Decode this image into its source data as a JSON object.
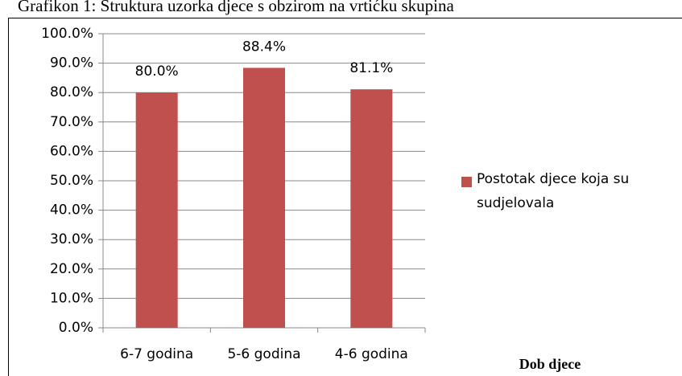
{
  "chart_data": {
    "type": "bar",
    "title": "Grafikon 1: Struktura uzorka djece s obzirom na vrtićku skupina",
    "x_label": "Dob djece",
    "categories": [
      "6-7 godina",
      "5-6 godina",
      "4-6 godina"
    ],
    "series": [
      {
        "name": "Postotak djece koja su sudjelovala",
        "color": "#c0504d",
        "values": [
          80.0,
          88.4,
          81.1
        ],
        "value_labels": [
          "80.0%",
          "88.4%",
          "81.1%"
        ]
      }
    ],
    "ylim": [
      0,
      100
    ],
    "yticks": [
      {
        "value": 0,
        "label": "0.0%"
      },
      {
        "value": 10,
        "label": "10.0%"
      },
      {
        "value": 20,
        "label": "20.0%"
      },
      {
        "value": 30,
        "label": "30.0%"
      },
      {
        "value": 40,
        "label": "40.0%"
      },
      {
        "value": 50,
        "label": "50.0%"
      },
      {
        "value": 60,
        "label": "60.0%"
      },
      {
        "value": 70,
        "label": "70.0%"
      },
      {
        "value": 80,
        "label": "80.0%"
      },
      {
        "value": 90,
        "label": "90.0%"
      },
      {
        "value": 100,
        "label": "100.0%"
      }
    ],
    "grid": true,
    "legend": "right"
  }
}
